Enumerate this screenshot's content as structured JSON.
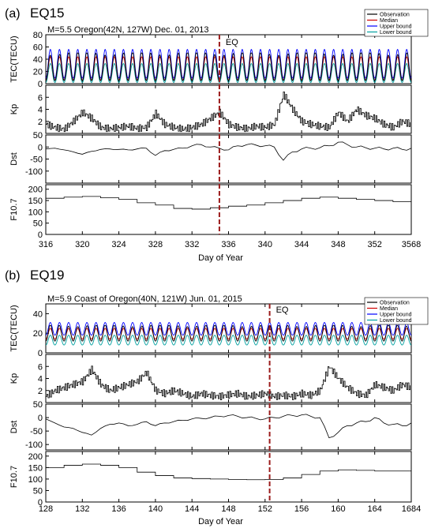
{
  "chart_data": [
    {
      "type": "line",
      "panel_label": "(a)",
      "event_id": "EQ15",
      "title": "M=5.5 Oregon(42N, 127W) Dec. 01, 2013",
      "eq_label": "EQ",
      "eq_day": 335,
      "xlabel": "Day of Year",
      "xlim": [
        316,
        356
      ],
      "xticks": [
        "316",
        "320",
        "324",
        "328",
        "332",
        "336",
        "340",
        "344",
        "348",
        "352",
        "3568"
      ],
      "legend": {
        "position": "top-right",
        "entries": [
          "Observation",
          "Median",
          "Upper bound",
          "Lower bound"
        ],
        "colors": [
          "#000000",
          "#d00000",
          "#0000ff",
          "#00a0a0"
        ]
      },
      "subplots": [
        {
          "ylabel": "TEC(TECU)",
          "ylim": [
            0,
            80
          ],
          "yticks": [
            "80",
            "60",
            "40",
            "20",
            "0"
          ],
          "series": [
            {
              "name": "Observation",
              "daily_min": 5,
              "daily_max": 50
            },
            {
              "name": "Median",
              "daily_min": 6,
              "daily_max": 44
            },
            {
              "name": "Upper bound",
              "daily_min": 9,
              "daily_max": 56
            },
            {
              "name": "Lower bound",
              "daily_min": 2,
              "daily_max": 33
            }
          ]
        },
        {
          "ylabel": "Kp",
          "ylim": [
            0,
            8
          ],
          "yticks": [
            "6",
            "4",
            "2"
          ],
          "x": [
            316,
            317,
            318,
            319,
            320,
            321,
            322,
            323,
            324,
            325,
            326,
            327,
            328,
            329,
            330,
            331,
            332,
            333,
            334,
            335,
            336,
            337,
            338,
            339,
            340,
            341,
            342,
            343,
            344,
            345,
            346,
            347,
            348,
            349,
            350,
            351,
            352,
            353,
            354,
            355,
            356
          ],
          "y": [
            1.5,
            1,
            0.7,
            2,
            3.5,
            2.5,
            1,
            0.8,
            1,
            1.2,
            0.8,
            1,
            3.3,
            1.5,
            1,
            0.7,
            1,
            1.5,
            2.5,
            3.5,
            1.5,
            1,
            0.8,
            1.2,
            1,
            1.5,
            6.5,
            4,
            2,
            1.5,
            1.2,
            1,
            3.5,
            2,
            4,
            3,
            2.5,
            1.5,
            1,
            2,
            1.5
          ]
        },
        {
          "ylabel": "Dst",
          "ylim": [
            -150,
            50
          ],
          "yticks": [
            "50",
            "0",
            "-50",
            "-100"
          ],
          "x": [
            316,
            317,
            318,
            319,
            320,
            321,
            322,
            323,
            324,
            325,
            326,
            327,
            328,
            329,
            330,
            331,
            332,
            333,
            334,
            335,
            336,
            337,
            338,
            339,
            340,
            341,
            342,
            343,
            344,
            345,
            346,
            347,
            348,
            349,
            350,
            351,
            352,
            353,
            354,
            355,
            356
          ],
          "y": [
            -8,
            -5,
            -12,
            -20,
            -30,
            -18,
            -10,
            -8,
            -10,
            -12,
            -8,
            -5,
            -35,
            -15,
            -10,
            -5,
            5,
            10,
            0,
            -5,
            -12,
            5,
            10,
            8,
            5,
            0,
            -55,
            -20,
            -8,
            -5,
            -3,
            5,
            20,
            10,
            0,
            -3,
            -5,
            -8,
            -5,
            -10,
            -5
          ]
        },
        {
          "ylabel": "F10.7",
          "ylim": [
            0,
            220
          ],
          "yticks": [
            "200",
            "150",
            "100",
            "50",
            "0"
          ],
          "x": [
            316,
            318,
            320,
            322,
            324,
            326,
            328,
            330,
            332,
            334,
            336,
            338,
            340,
            342,
            344,
            346,
            348,
            350,
            352,
            354,
            356
          ],
          "y": [
            160,
            165,
            168,
            162,
            155,
            140,
            130,
            115,
            112,
            118,
            125,
            130,
            140,
            150,
            160,
            165,
            160,
            155,
            150,
            145,
            140
          ]
        }
      ]
    },
    {
      "type": "line",
      "panel_label": "(b)",
      "event_id": "EQ19",
      "title": "M=5.9 Coast of Oregon(40N, 121W) Jun. 01, 2015",
      "eq_label": "EQ",
      "eq_day": 152.5,
      "xlabel": "Day of Year",
      "xlim": [
        128,
        168
      ],
      "xticks": [
        "128",
        "132",
        "136",
        "140",
        "144",
        "148",
        "152",
        "156",
        "160",
        "164",
        "1684"
      ],
      "legend": {
        "position": "top-right",
        "entries": [
          "Observation",
          "Median",
          "Upper bound",
          "Lower bound"
        ],
        "colors": [
          "#000000",
          "#d00000",
          "#0000ff",
          "#00a0a0"
        ]
      },
      "subplots": [
        {
          "ylabel": "TEC(TECU)",
          "ylim": [
            0,
            50
          ],
          "yticks": [
            "40",
            "20",
            "0"
          ],
          "series": [
            {
              "name": "Observation",
              "daily_min": 12,
              "daily_max": 28
            },
            {
              "name": "Median",
              "daily_min": 14,
              "daily_max": 25
            },
            {
              "name": "Upper bound",
              "daily_min": 18,
              "daily_max": 31
            },
            {
              "name": "Lower bound",
              "daily_min": 8,
              "daily_max": 18
            }
          ]
        },
        {
          "ylabel": "Kp",
          "ylim": [
            0,
            8
          ],
          "yticks": [
            "6",
            "4",
            "2"
          ],
          "x": [
            128,
            129,
            130,
            131,
            132,
            133,
            134,
            135,
            136,
            137,
            138,
            139,
            140,
            141,
            142,
            143,
            144,
            145,
            146,
            147,
            148,
            149,
            150,
            151,
            152,
            153,
            154,
            155,
            156,
            157,
            158,
            159,
            160,
            161,
            162,
            163,
            164,
            165,
            166,
            167,
            168
          ],
          "y": [
            1,
            2,
            2.5,
            3,
            3.5,
            5.5,
            3,
            2,
            2.5,
            3,
            3.5,
            5,
            2,
            1.5,
            2,
            1.5,
            1,
            1.5,
            1.2,
            1,
            1.3,
            1.5,
            1,
            1.2,
            1.5,
            1,
            1.2,
            1,
            1.5,
            1.2,
            2,
            6,
            4,
            2.5,
            1.5,
            1.2,
            3,
            2.5,
            2,
            3,
            2.5
          ]
        },
        {
          "ylabel": "Dst",
          "ylim": [
            -120,
            50
          ],
          "yticks": [
            "50",
            "0",
            "-50",
            "-100"
          ],
          "x": [
            128,
            129,
            130,
            131,
            132,
            133,
            134,
            135,
            136,
            137,
            138,
            139,
            140,
            141,
            142,
            143,
            144,
            145,
            146,
            147,
            148,
            149,
            150,
            151,
            152,
            153,
            154,
            155,
            156,
            157,
            158,
            159,
            160,
            161,
            162,
            163,
            164,
            165,
            166,
            167,
            168
          ],
          "y": [
            -5,
            -20,
            -35,
            -40,
            -55,
            -65,
            -40,
            -25,
            -20,
            -30,
            -25,
            -15,
            -30,
            -20,
            -15,
            -10,
            -5,
            -3,
            0,
            5,
            8,
            5,
            0,
            -3,
            -5,
            0,
            5,
            8,
            10,
            5,
            0,
            -75,
            -55,
            -30,
            -20,
            -15,
            0,
            -20,
            -25,
            -30,
            -20
          ]
        },
        {
          "ylabel": "F10.7",
          "ylim": [
            0,
            220
          ],
          "yticks": [
            "200",
            "150",
            "100",
            "50",
            "0"
          ],
          "x": [
            128,
            130,
            132,
            134,
            136,
            138,
            140,
            142,
            144,
            146,
            148,
            150,
            152,
            154,
            156,
            158,
            160,
            162,
            164,
            166,
            168
          ],
          "y": [
            150,
            160,
            165,
            160,
            150,
            130,
            115,
            105,
            102,
            100,
            98,
            97,
            98,
            105,
            120,
            135,
            140,
            138,
            135,
            135,
            140
          ]
        }
      ]
    }
  ]
}
